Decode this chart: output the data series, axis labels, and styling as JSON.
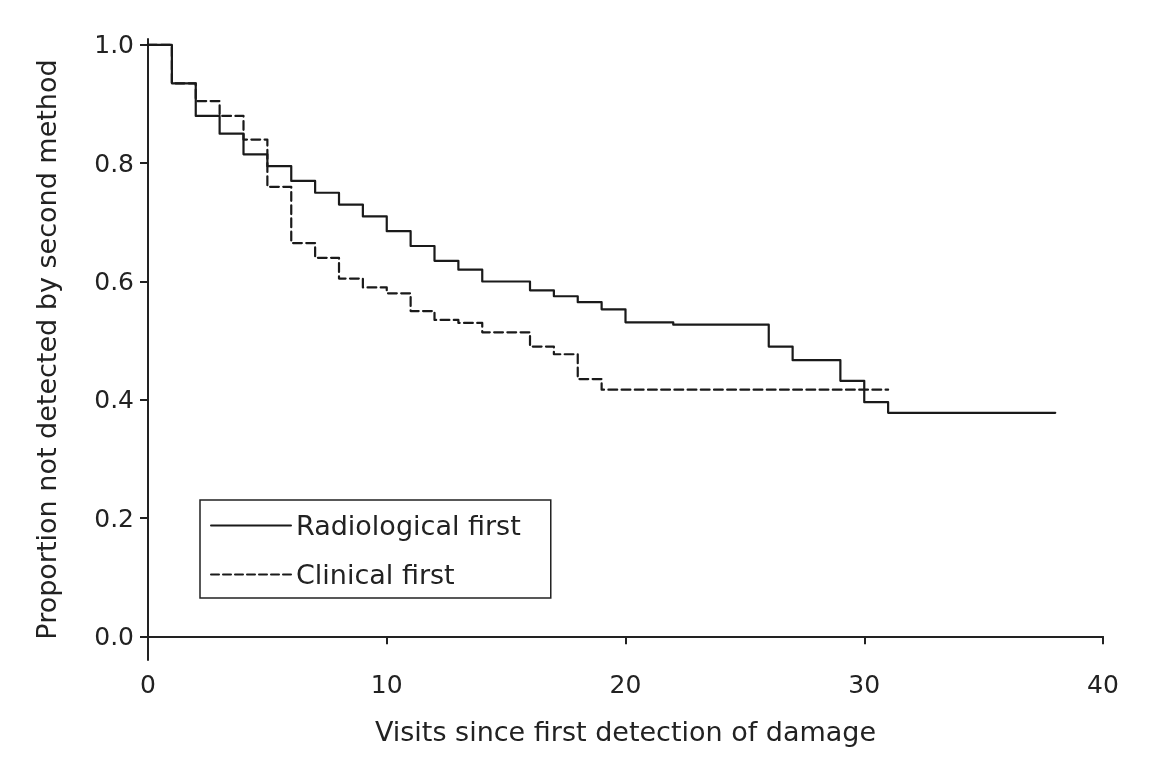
{
  "chart_data": {
    "type": "step",
    "xlabel": "Visits since first detection of damage",
    "ylabel": "Proportion not detected by second method",
    "xlim": [
      0,
      40
    ],
    "xticks": [
      0,
      10,
      20,
      30,
      40
    ],
    "ylim": [
      -0.04,
      1.01
    ],
    "yticks": [
      {
        "value": 0,
        "label": "0.0"
      },
      {
        "value": 0.2,
        "label": "0.2"
      },
      {
        "value": 0.4,
        "label": "0.4"
      },
      {
        "value": 0.6,
        "label": "0.6"
      },
      {
        "value": 0.8,
        "label": "0.8"
      },
      {
        "value": 1,
        "label": "1.0"
      }
    ],
    "grid": false,
    "legend": "bottom left",
    "marker": "none",
    "series": [
      {
        "name": "Radiological first",
        "color": "#1a1a1a",
        "line_style": "solid",
        "x": [
          0,
          1,
          2,
          3,
          4,
          5,
          6,
          7,
          8,
          9,
          10,
          11,
          12,
          13,
          14,
          16,
          17,
          18,
          19,
          20,
          22,
          26,
          27,
          29,
          30,
          31,
          38
        ],
        "values": [
          1.0,
          0.935,
          0.88,
          0.85,
          0.815,
          0.795,
          0.77,
          0.75,
          0.73,
          0.71,
          0.685,
          0.66,
          0.635,
          0.62,
          0.6,
          0.585,
          0.575,
          0.565,
          0.553,
          0.531,
          0.527,
          0.49,
          0.467,
          0.432,
          0.396,
          0.378,
          0.378
        ]
      },
      {
        "name": "Clinical first",
        "color": "#1a1a1a",
        "line_style": "dashed",
        "x": [
          0,
          1,
          2,
          3,
          4,
          5,
          6,
          7,
          8,
          9,
          10,
          11,
          12,
          13,
          14,
          16,
          17,
          18,
          19,
          31
        ],
        "values": [
          1.0,
          0.935,
          0.905,
          0.88,
          0.84,
          0.76,
          0.665,
          0.64,
          0.605,
          0.59,
          0.58,
          0.55,
          0.535,
          0.53,
          0.514,
          0.49,
          0.477,
          0.435,
          0.417,
          0.417
        ]
      }
    ]
  }
}
